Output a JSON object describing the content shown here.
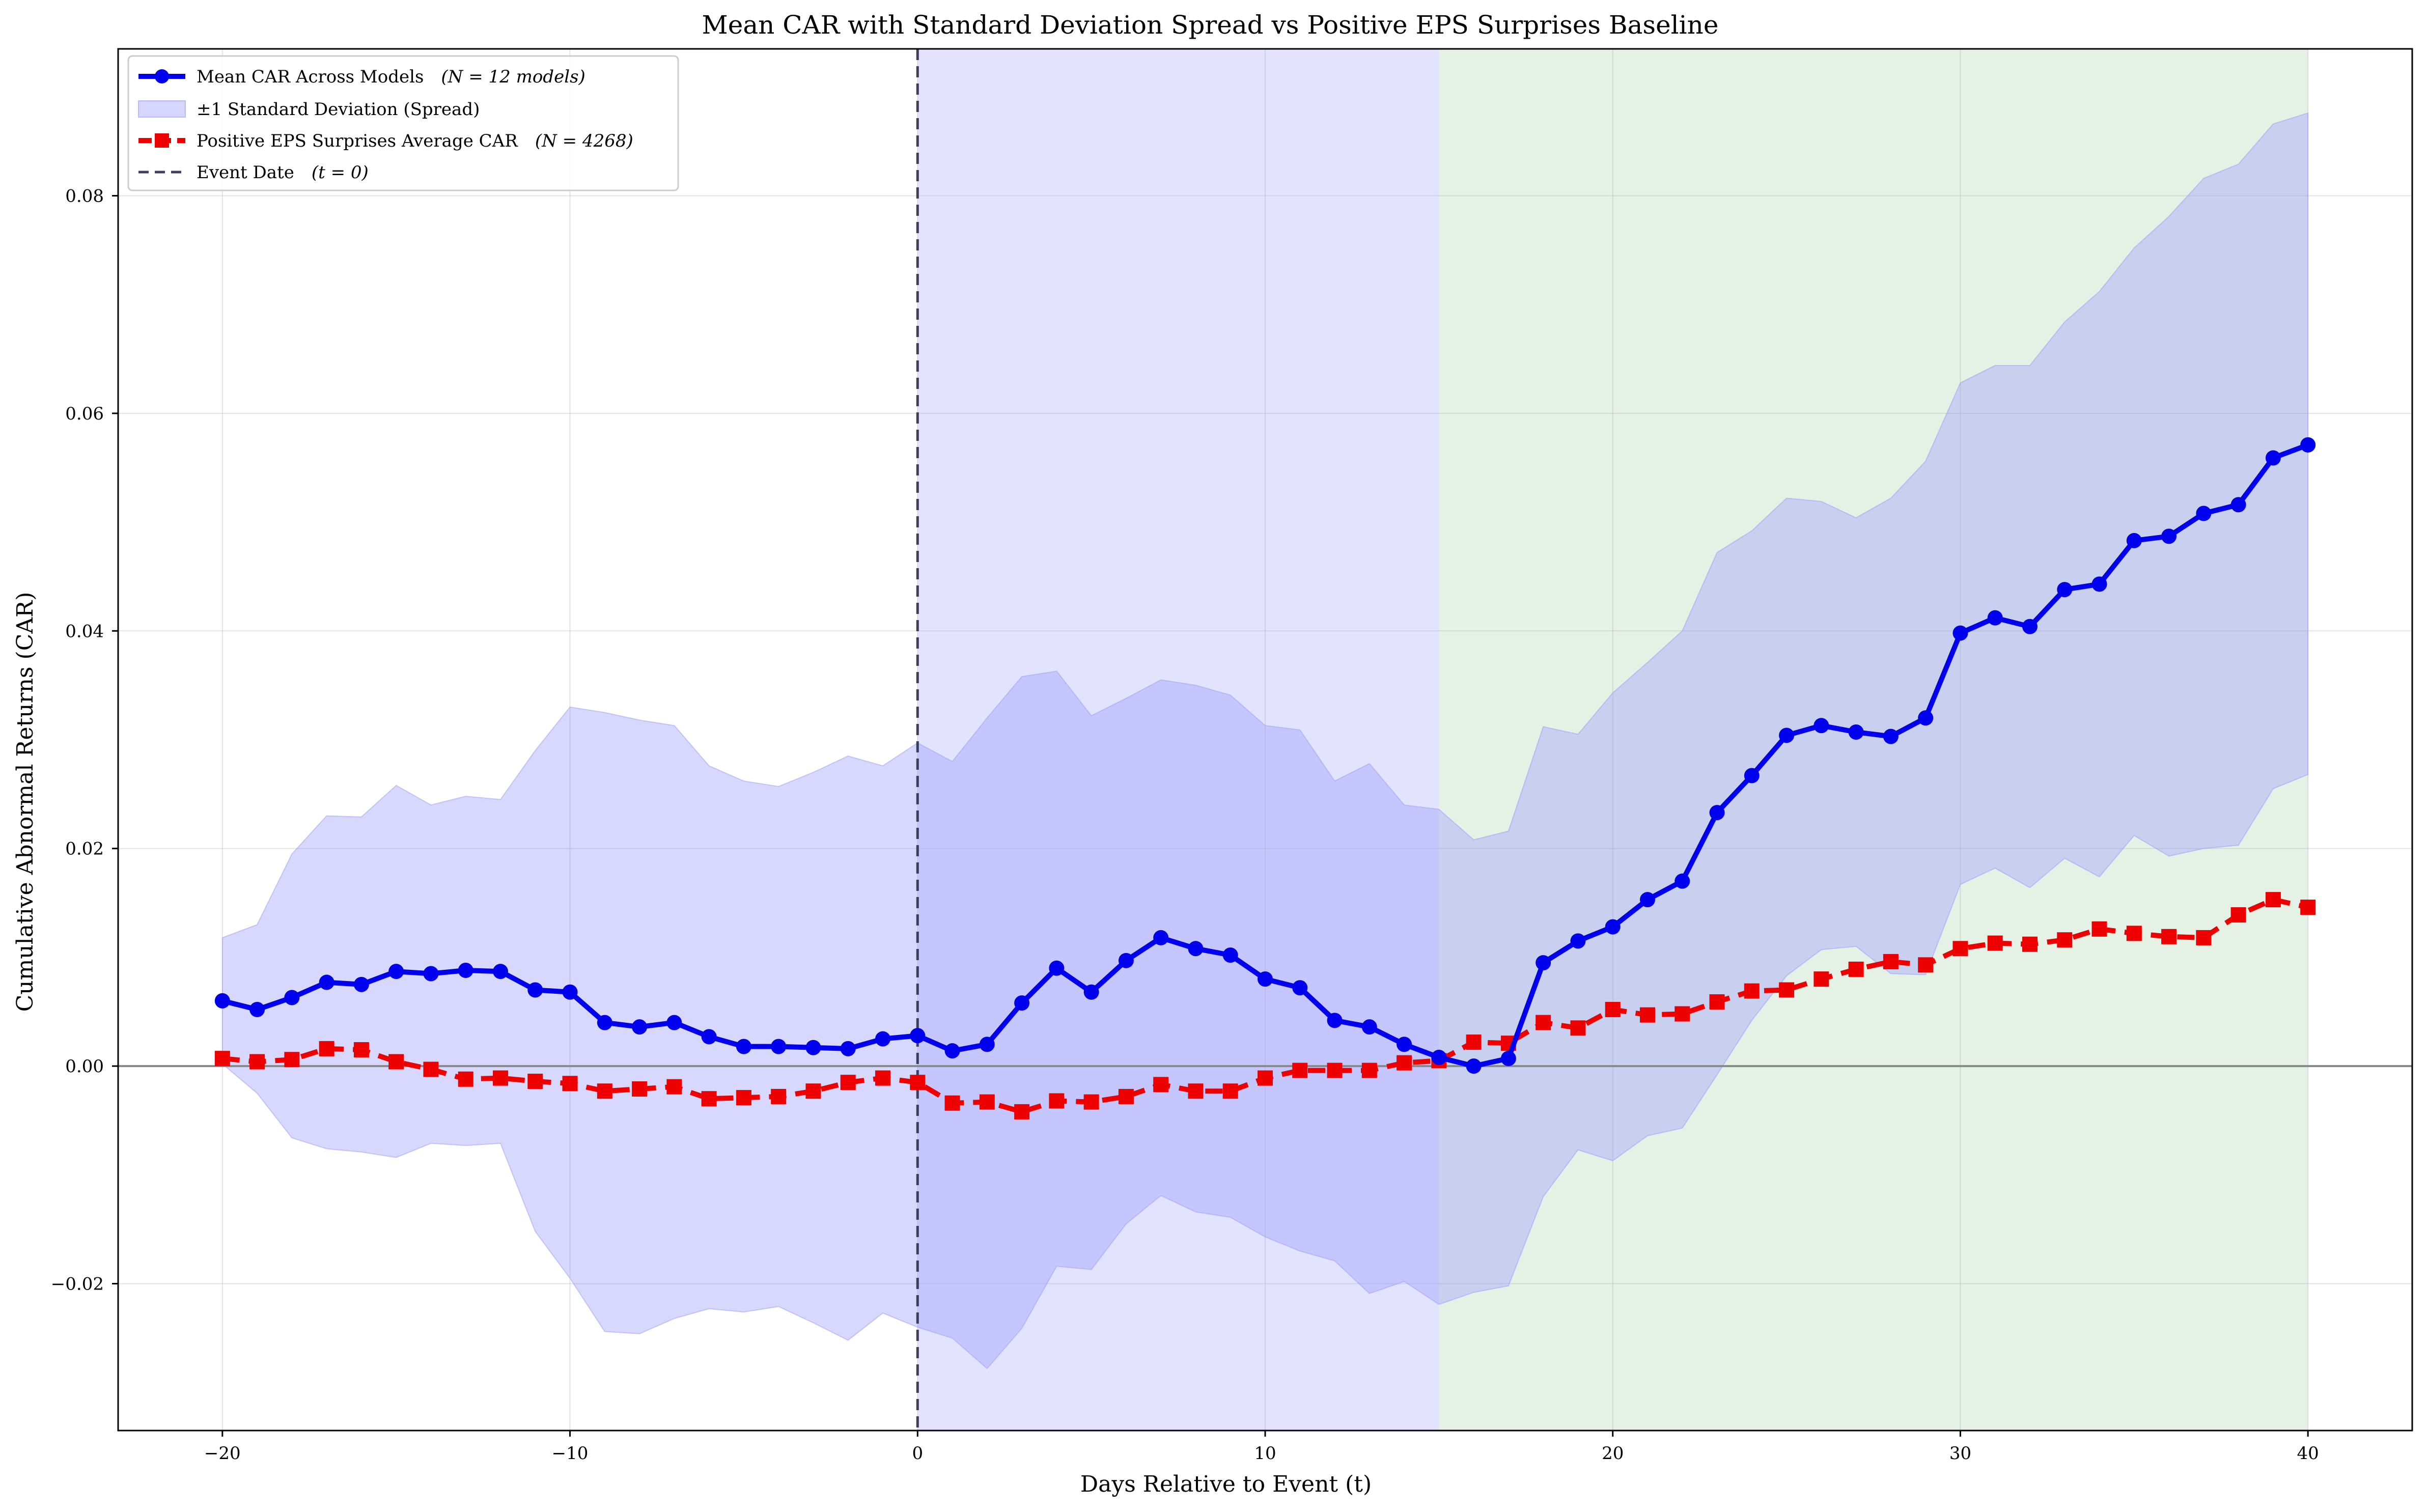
{
  "chart_data": {
    "type": "line",
    "title": "Mean CAR with Standard Deviation Spread vs Positive EPS Surprises Baseline",
    "xlabel": "Days Relative to Event (t)",
    "ylabel": "Cumulative Abnormal Returns (CAR)",
    "xlim": [
      -23,
      43
    ],
    "ylim": [
      -0.0335,
      0.0935
    ],
    "grid": true,
    "legend_position": "top-left",
    "x_ticks": [
      -20,
      -10,
      0,
      10,
      20,
      30,
      40
    ],
    "x_tick_labels": [
      "−20",
      "−10",
      "0",
      "10",
      "20",
      "30",
      "40"
    ],
    "y_ticks": [
      -0.02,
      0.0,
      0.02,
      0.04,
      0.06,
      0.08
    ],
    "y_tick_labels": [
      "−0.02",
      "0.00",
      "0.02",
      "0.04",
      "0.06",
      "0.08"
    ],
    "x": [
      -20,
      -19,
      -18,
      -17,
      -16,
      -15,
      -14,
      -13,
      -12,
      -11,
      -10,
      -9,
      -8,
      -7,
      -6,
      -5,
      -4,
      -3,
      -2,
      -1,
      0,
      1,
      2,
      3,
      4,
      5,
      6,
      7,
      8,
      9,
      10,
      11,
      12,
      13,
      14,
      15,
      16,
      17,
      18,
      19,
      20,
      21,
      22,
      23,
      24,
      25,
      26,
      27,
      28,
      29,
      30,
      31,
      32,
      33,
      34,
      35,
      36,
      37,
      38,
      39,
      40
    ],
    "shaded_regions": [
      {
        "from": 0,
        "to": 15,
        "color": "#e0e0ff"
      },
      {
        "from": 15,
        "to": 40,
        "color": "#e3f0e3"
      }
    ],
    "event_line": {
      "x": 0,
      "color": "#3d3d5c"
    },
    "zero_line": {
      "y": 0,
      "color": "#888888"
    },
    "series": [
      {
        "name": "Mean CAR Across Models",
        "legend_label": "Mean CAR Across Models",
        "legend_note": "(N = 12 models)",
        "color": "#0000ee",
        "marker": "circle",
        "line_style": "solid",
        "values": [
          0.006,
          0.0052,
          0.0063,
          0.0077,
          0.0075,
          0.0087,
          0.0085,
          0.0088,
          0.0087,
          0.007,
          0.0068,
          0.004,
          0.0036,
          0.004,
          0.0027,
          0.0018,
          0.0018,
          0.0017,
          0.0016,
          0.0025,
          0.0028,
          0.0014,
          0.002,
          0.0058,
          0.009,
          0.0068,
          0.0097,
          0.0118,
          0.0108,
          0.0102,
          0.008,
          0.0072,
          0.0042,
          0.0036,
          0.002,
          0.0008,
          0.0,
          0.0007,
          0.0095,
          0.0115,
          0.0128,
          0.0153,
          0.017,
          0.0233,
          0.0267,
          0.0304,
          0.0313,
          0.0307,
          0.0303,
          0.032,
          0.0398,
          0.0412,
          0.0404,
          0.0438,
          0.0443,
          0.0483,
          0.0487,
          0.0508,
          0.0516,
          0.0559,
          0.0571
        ]
      },
      {
        "name": "±1 Standard Deviation (Spread)",
        "legend_label": "±1 Standard Deviation (Spread)",
        "color": "#9999ff",
        "type": "band",
        "upper": [
          0.0118,
          0.013,
          0.0195,
          0.023,
          0.0229,
          0.0258,
          0.024,
          0.0248,
          0.0245,
          0.029,
          0.033,
          0.0325,
          0.0318,
          0.0313,
          0.0276,
          0.0262,
          0.0257,
          0.027,
          0.0285,
          0.0276,
          0.0297,
          0.028,
          0.032,
          0.0358,
          0.0363,
          0.0322,
          0.0338,
          0.0355,
          0.035,
          0.0341,
          0.0313,
          0.0309,
          0.0262,
          0.0278,
          0.024,
          0.0236,
          0.0208,
          0.0216,
          0.0312,
          0.0305,
          0.0343,
          0.0371,
          0.04,
          0.0472,
          0.0492,
          0.0522,
          0.0519,
          0.0504,
          0.0522,
          0.0556,
          0.0628,
          0.0644,
          0.0644,
          0.0684,
          0.0712,
          0.0752,
          0.0781,
          0.0816,
          0.0829,
          0.0866,
          0.0876
        ],
        "lower": [
          0.0002,
          -0.0025,
          -0.0066,
          -0.0076,
          -0.0079,
          -0.0084,
          -0.0071,
          -0.0073,
          -0.0071,
          -0.0152,
          -0.0195,
          -0.0244,
          -0.0246,
          -0.0232,
          -0.0223,
          -0.0226,
          -0.0221,
          -0.0236,
          -0.0252,
          -0.0227,
          -0.024,
          -0.025,
          -0.0278,
          -0.0241,
          -0.0184,
          -0.0187,
          -0.0145,
          -0.0119,
          -0.0134,
          -0.0139,
          -0.0157,
          -0.017,
          -0.0179,
          -0.0209,
          -0.0198,
          -0.0219,
          -0.0208,
          -0.0202,
          -0.012,
          -0.0077,
          -0.0087,
          -0.0064,
          -0.0057,
          -0.0008,
          0.0042,
          0.0083,
          0.0107,
          0.011,
          0.0085,
          0.0084,
          0.0167,
          0.0182,
          0.0164,
          0.0191,
          0.0174,
          0.0212,
          0.0193,
          0.02,
          0.0203,
          0.0255,
          0.0268
        ]
      },
      {
        "name": "Positive EPS Surprises Average CAR",
        "legend_label": "Positive EPS Surprises Average CAR",
        "legend_note": "(N = 4268)",
        "color": "#ee0000",
        "marker": "square",
        "line_style": "dashed",
        "values": [
          0.0007,
          0.0004,
          0.0006,
          0.0016,
          0.0015,
          0.0004,
          -0.0003,
          -0.0012,
          -0.0011,
          -0.0014,
          -0.0016,
          -0.0023,
          -0.0021,
          -0.0019,
          -0.003,
          -0.0029,
          -0.0028,
          -0.0023,
          -0.0015,
          -0.0011,
          -0.0015,
          -0.0034,
          -0.0033,
          -0.0042,
          -0.0032,
          -0.0033,
          -0.0028,
          -0.0017,
          -0.0023,
          -0.0023,
          -0.0011,
          -0.0004,
          -0.0004,
          -0.0004,
          0.0003,
          0.0005,
          0.0022,
          0.0021,
          0.004,
          0.0035,
          0.0052,
          0.0047,
          0.0048,
          0.0059,
          0.0069,
          0.007,
          0.008,
          0.0089,
          0.0096,
          0.0093,
          0.0108,
          0.0113,
          0.0112,
          0.0116,
          0.0126,
          0.0122,
          0.0119,
          0.0118,
          0.0139,
          0.0153,
          0.0146
        ]
      },
      {
        "name": "Event Date",
        "legend_label": "Event Date",
        "legend_note": "(t = 0)",
        "color": "#3d3d5c",
        "type": "vline"
      }
    ]
  }
}
